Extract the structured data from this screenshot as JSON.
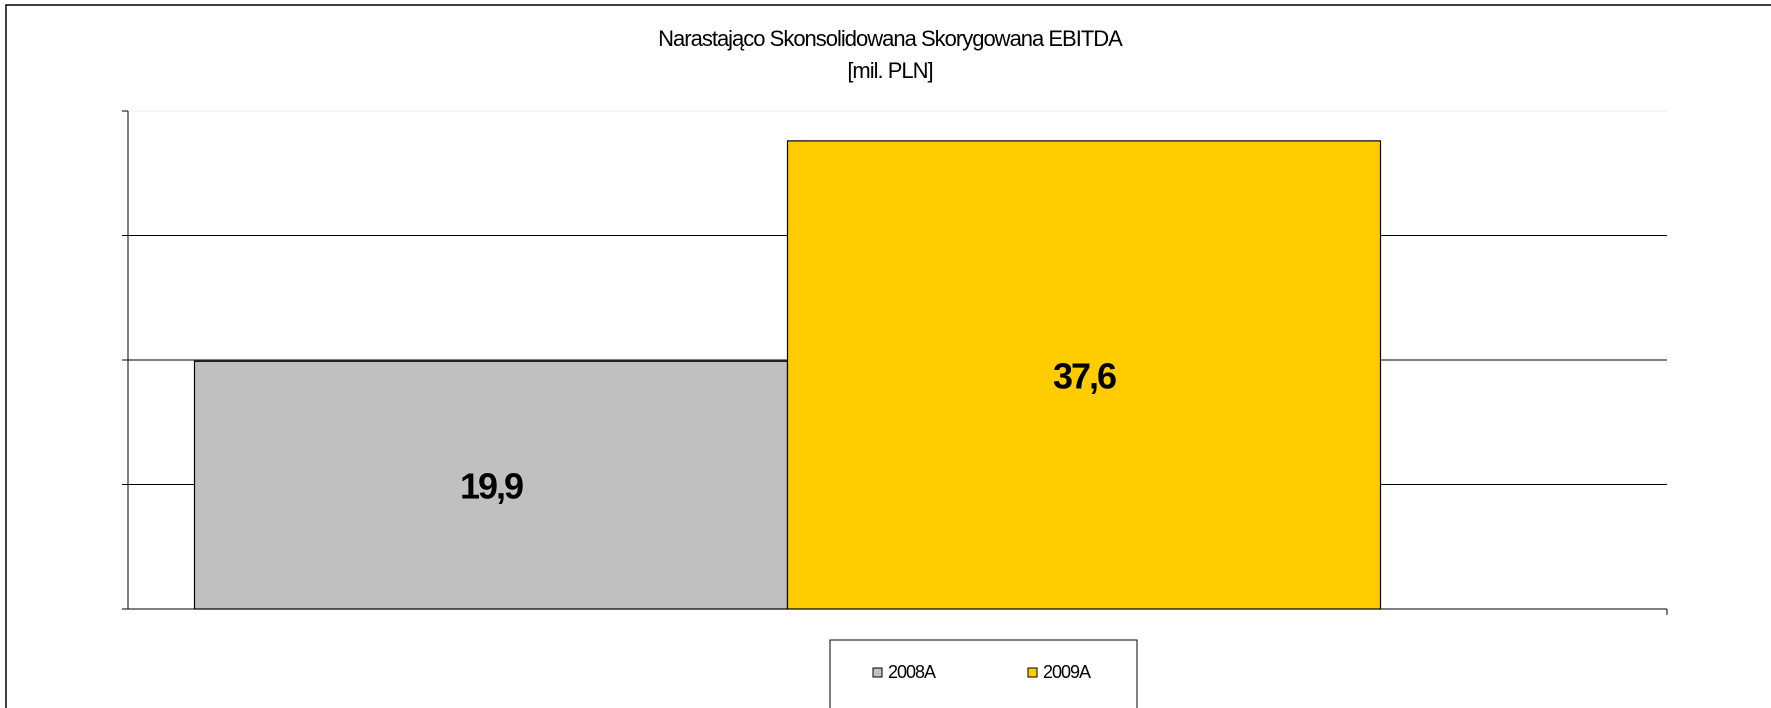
{
  "chart_data": {
    "type": "bar",
    "title": "Narastająco Skonsolidowana Skorygowana EBITDA",
    "subtitle": "[mil. PLN]",
    "categories": [
      null
    ],
    "series": [
      {
        "name": "2008A",
        "color": "#c0c0c0",
        "values": [
          19.9
        ],
        "value_labels": [
          "19,9"
        ]
      },
      {
        "name": "2009A",
        "color": "#ffcc00",
        "values": [
          37.6
        ],
        "value_labels": [
          "37,6"
        ]
      }
    ],
    "ylim": [
      0,
      40
    ],
    "yticks": [
      0,
      10,
      20,
      30,
      40
    ],
    "grid": true,
    "legend": "bottom"
  }
}
